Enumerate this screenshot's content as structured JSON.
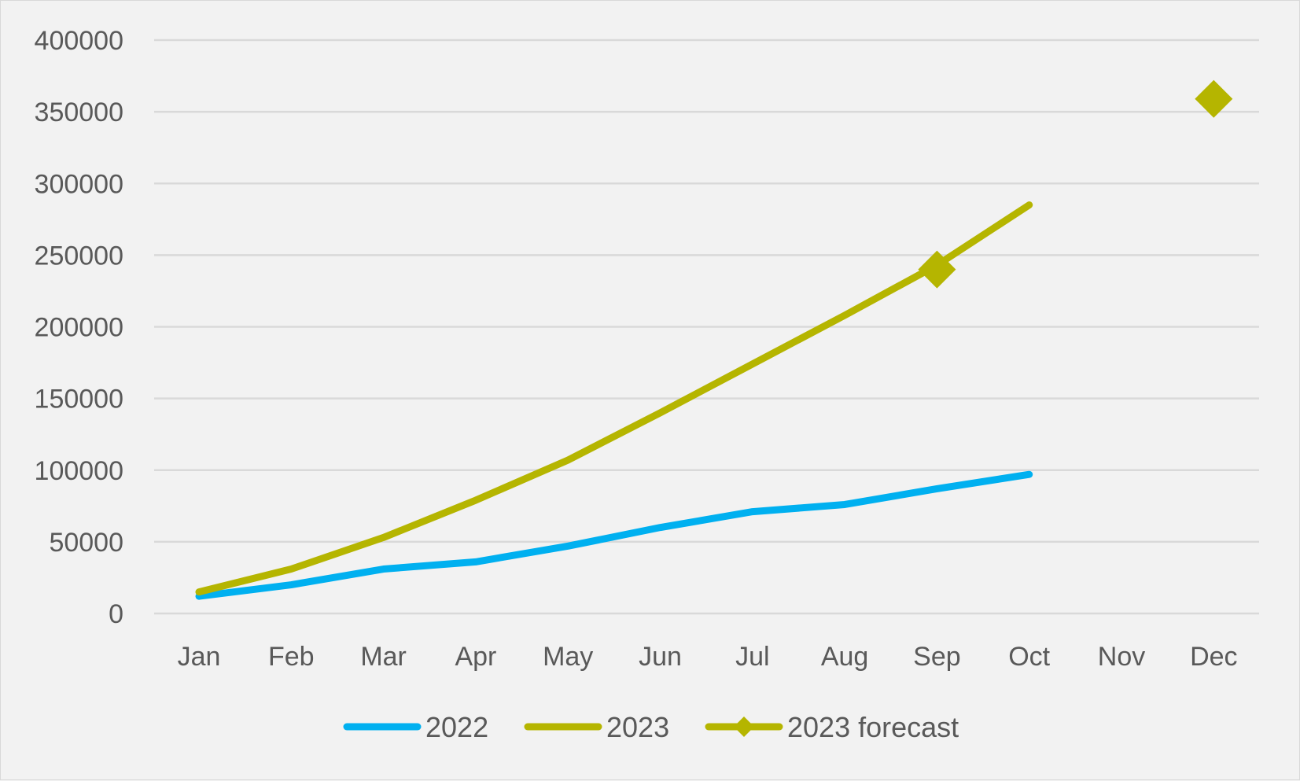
{
  "chart_data": {
    "type": "line",
    "title": "",
    "xlabel": "",
    "ylabel": "",
    "categories": [
      "Jan",
      "Feb",
      "Mar",
      "Apr",
      "May",
      "Jun",
      "Jul",
      "Aug",
      "Sep",
      "Oct",
      "Nov",
      "Dec"
    ],
    "y_ticks": [
      "0",
      "50000",
      "100000",
      "150000",
      "200000",
      "250000",
      "300000",
      "350000",
      "400000"
    ],
    "ylim": [
      0,
      400000
    ],
    "grid": "horizontal",
    "legend_position": "bottom",
    "series": [
      {
        "name": "2022",
        "color": "#00b0f0",
        "marker": "none",
        "values": [
          12000,
          20000,
          31000,
          36000,
          47000,
          60000,
          71000,
          76000,
          87000,
          97000,
          null,
          null
        ]
      },
      {
        "name": "2023",
        "color": "#b5b500",
        "marker": "none",
        "values": [
          15000,
          31000,
          53000,
          79000,
          107000,
          140000,
          174000,
          208000,
          243000,
          285000,
          null,
          null
        ]
      },
      {
        "name": "2023 forecast",
        "color": "#b5b500",
        "marker": "diamond",
        "values": [
          null,
          null,
          null,
          null,
          null,
          null,
          null,
          null,
          240000,
          null,
          null,
          359000
        ]
      }
    ]
  }
}
